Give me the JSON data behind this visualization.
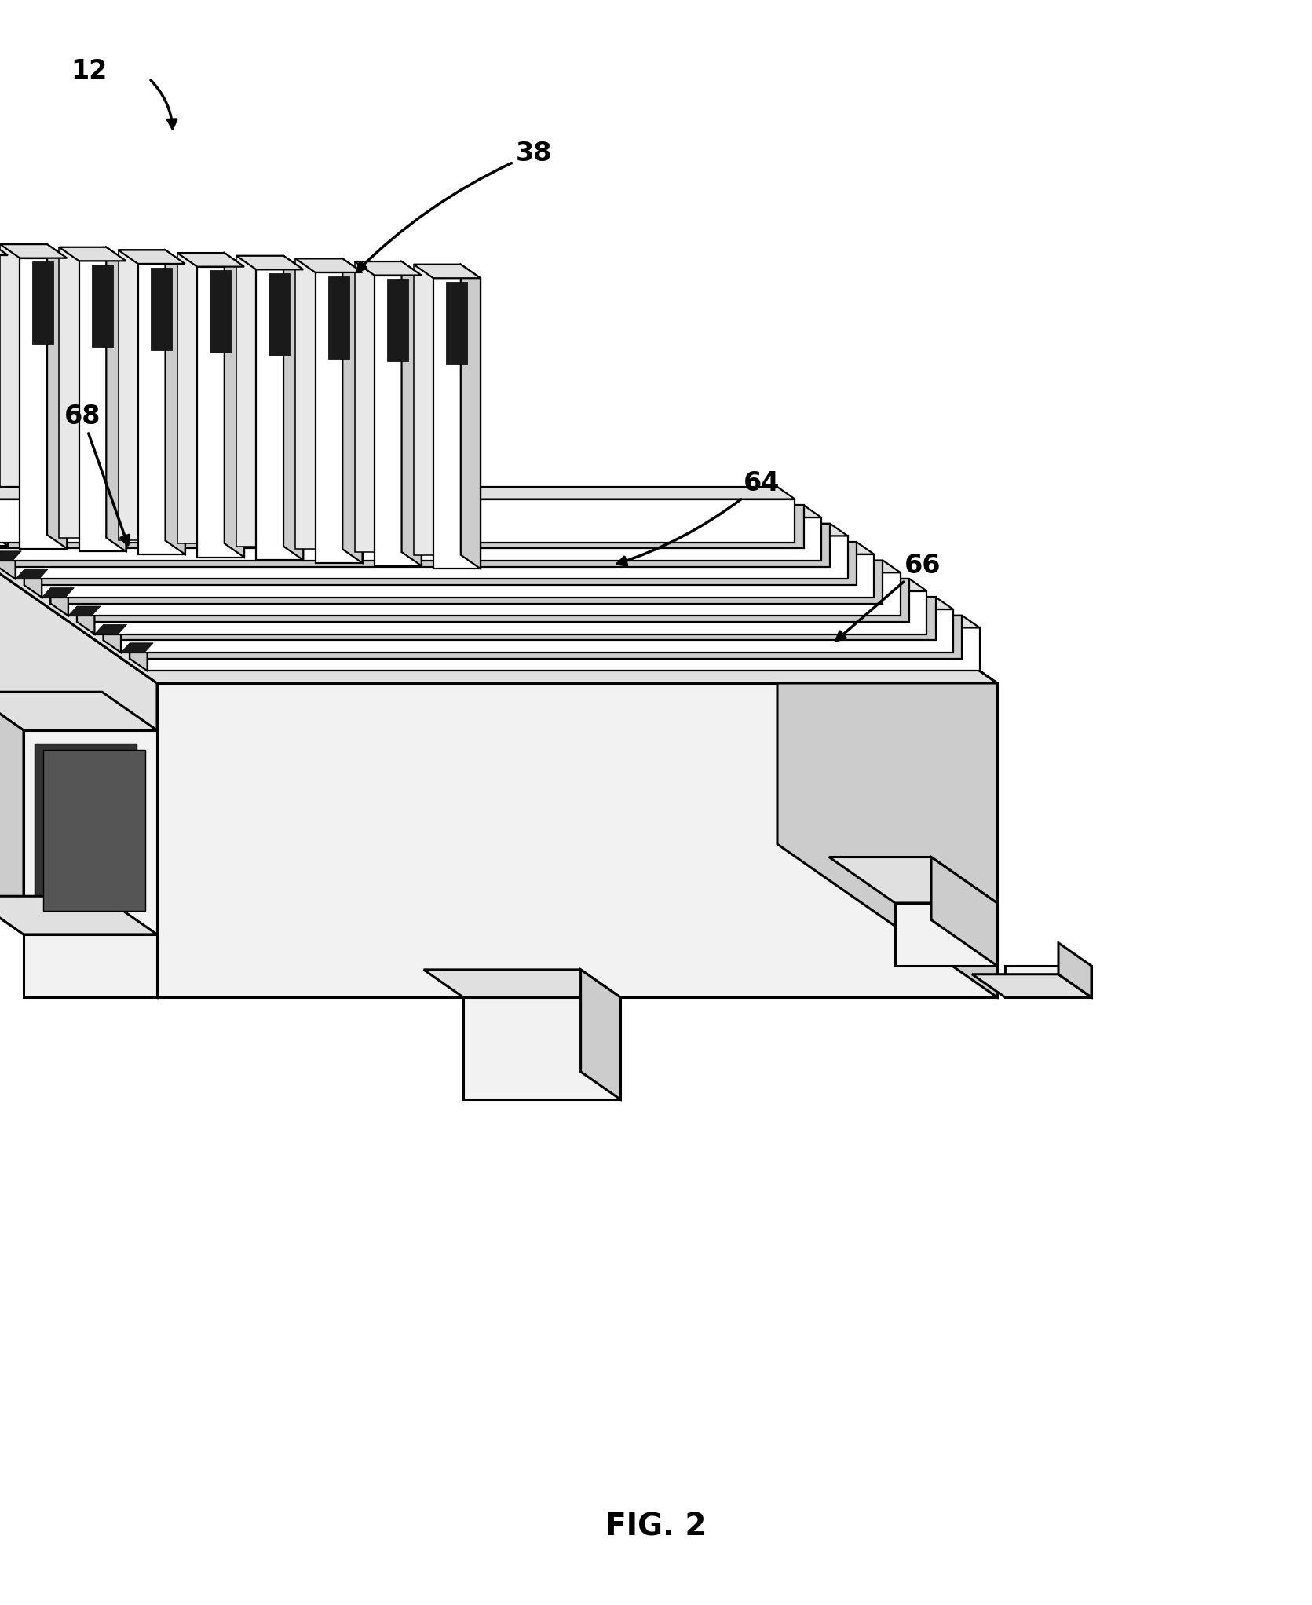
{
  "title": "FIG. 2",
  "title_fontsize": 28,
  "title_fontweight": "bold",
  "background_color": "#ffffff",
  "line_color": "#000000",
  "lw_main": 2.2,
  "lw_detail": 1.6,
  "lw_thin": 1.0,
  "fig_width": 16.71,
  "fig_height": 20.44,
  "label_fontsize": 24,
  "n_fins": 8,
  "n_pins": 9
}
